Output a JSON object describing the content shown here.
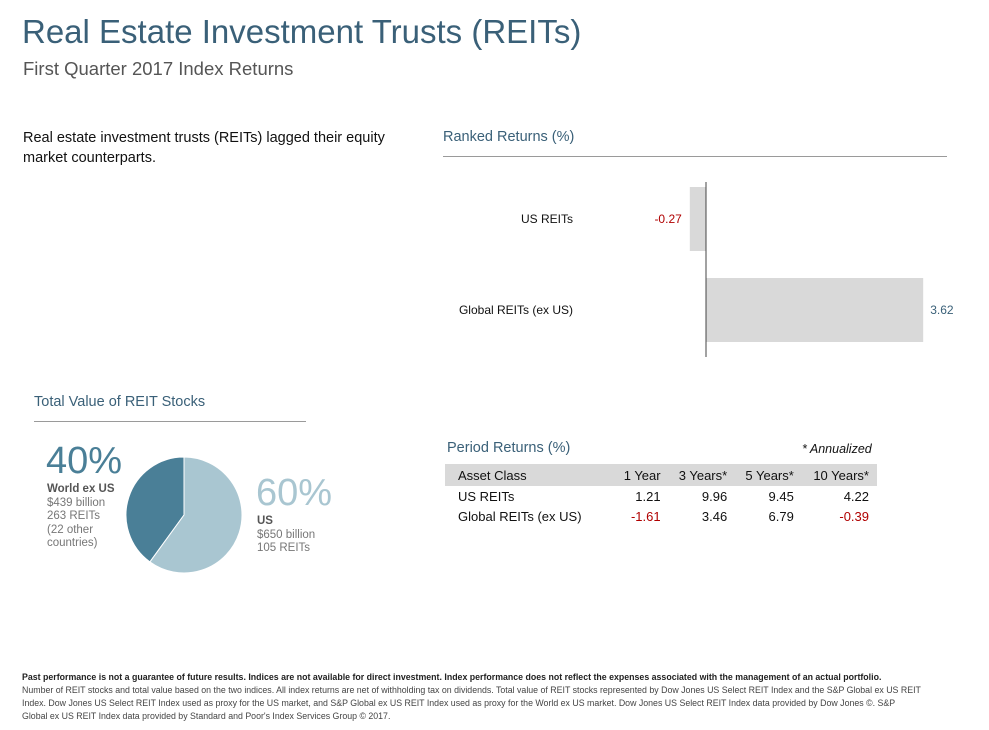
{
  "header": {
    "title": "Real Estate Investment Trusts (REITs)",
    "subtitle": "First Quarter 2017 Index Returns"
  },
  "summary": "Real estate investment trusts (REITs) lagged their equity market counterparts.",
  "ranked": {
    "heading": "Ranked Returns (%)"
  },
  "total_value": {
    "heading": "Total Value of REIT Stocks",
    "world": {
      "pct": "40%",
      "name": "World ex US",
      "value": "$439 billion",
      "count": "263 REITs",
      "note1": "(22 other",
      "note2": "countries)"
    },
    "us": {
      "pct": "60%",
      "name": "US",
      "value": "$650 billion",
      "count": "105 REITs"
    }
  },
  "period": {
    "heading": "Period Returns (%)",
    "annualized_note": "* Annualized",
    "columns": [
      "Asset Class",
      "1 Year",
      "3 Years*",
      "5 Years*",
      "10 Years*"
    ],
    "rows": [
      {
        "name": "US REITs",
        "values": [
          "1.21",
          "9.96",
          "9.45",
          "4.22"
        ]
      },
      {
        "name": "Global REITs (ex US)",
        "values": [
          "-1.61",
          "3.46",
          "6.79",
          "-0.39"
        ]
      }
    ]
  },
  "disclaimer": {
    "bold": "Past performance is not a guarantee of future results. Indices are not available for direct investment. Index performance does not reflect the expenses associated with the management of an actual portfolio.",
    "body": "Number of REIT stocks and total value based on the two indices. All index returns are net of withholding tax on dividends. Total value of REIT stocks represented by Dow Jones US Select REIT Index and the S&P Global ex US REIT Index. Dow Jones US Select REIT Index used as proxy for the US market, and S&P Global ex US REIT Index used as proxy for the World ex US market. Dow Jones US Select REIT Index data provided by Dow Jones ©. S&P Global ex US REIT Index data provided by Standard and Poor's Index Services Group © 2017."
  },
  "colors": {
    "bar": "#d9d9d9",
    "negative_text": "#b00000",
    "positive_text": "#3a6078",
    "pie_world": "#4a7f97",
    "pie_us": "#a9c6d1"
  },
  "chart_data": [
    {
      "type": "bar",
      "orientation": "horizontal",
      "title": "Ranked Returns (%)",
      "categories": [
        "US REITs",
        "Global REITs (ex US)"
      ],
      "values": [
        -0.27,
        3.62
      ],
      "value_labels": [
        "-0.27",
        "3.62"
      ]
    },
    {
      "type": "pie",
      "title": "Total Value of REIT Stocks",
      "labels": [
        "World ex US",
        "US"
      ],
      "values": [
        40,
        60
      ]
    },
    {
      "type": "table",
      "title": "Period Returns (%)",
      "columns": [
        "Asset Class",
        "1 Year",
        "3 Years*",
        "5 Years*",
        "10 Years*"
      ],
      "rows": [
        [
          "US REITs",
          1.21,
          9.96,
          9.45,
          4.22
        ],
        [
          "Global REITs (ex US)",
          -1.61,
          3.46,
          6.79,
          -0.39
        ]
      ]
    }
  ]
}
